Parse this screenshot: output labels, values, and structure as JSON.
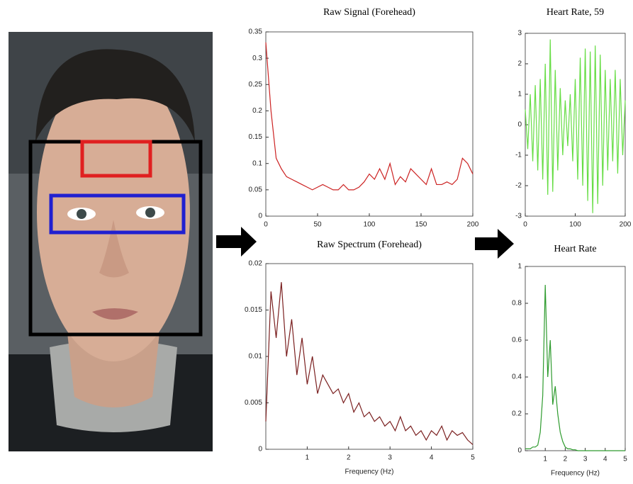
{
  "chart_data": [
    {
      "type": "line",
      "title": "Raw Signal (Forehead)",
      "x": [
        0,
        5,
        10,
        15,
        20,
        25,
        30,
        35,
        40,
        45,
        50,
        55,
        60,
        65,
        70,
        75,
        80,
        85,
        90,
        95,
        100,
        105,
        110,
        115,
        120,
        125,
        130,
        135,
        140,
        145,
        150,
        155,
        160,
        165,
        170,
        175,
        180,
        185,
        190,
        195,
        200
      ],
      "series": [
        {
          "color": "#cc2222",
          "values": [
            0.33,
            0.2,
            0.11,
            0.09,
            0.075,
            0.07,
            0.065,
            0.06,
            0.055,
            0.05,
            0.055,
            0.06,
            0.055,
            0.05,
            0.05,
            0.06,
            0.05,
            0.05,
            0.055,
            0.065,
            0.08,
            0.07,
            0.09,
            0.07,
            0.1,
            0.06,
            0.075,
            0.065,
            0.09,
            0.08,
            0.07,
            0.06,
            0.09,
            0.06,
            0.06,
            0.065,
            0.06,
            0.07,
            0.11,
            0.1,
            0.08
          ]
        }
      ],
      "xlim": [
        0,
        200
      ],
      "xticks": [
        0,
        50,
        100,
        150,
        200
      ],
      "ylim": [
        0,
        0.35
      ],
      "yticks": [
        0,
        0.05,
        0.1,
        0.15,
        0.2,
        0.25,
        0.3,
        0.35
      ]
    },
    {
      "type": "line",
      "title": "Raw Spectrum (Forehead)",
      "x_label": "Frequency (Hz)",
      "x": [
        0,
        0.125,
        0.25,
        0.375,
        0.5,
        0.625,
        0.75,
        0.875,
        1,
        1.125,
        1.25,
        1.375,
        1.5,
        1.625,
        1.75,
        1.875,
        2,
        2.125,
        2.25,
        2.375,
        2.5,
        2.625,
        2.75,
        2.875,
        3,
        3.125,
        3.25,
        3.375,
        3.5,
        3.625,
        3.75,
        3.875,
        4,
        4.125,
        4.25,
        4.375,
        4.5,
        4.625,
        4.75,
        4.875,
        5
      ],
      "series": [
        {
          "color": "#7a1f1f",
          "values": [
            0.003,
            0.017,
            0.012,
            0.018,
            0.01,
            0.014,
            0.008,
            0.012,
            0.007,
            0.01,
            0.006,
            0.008,
            0.007,
            0.006,
            0.0065,
            0.005,
            0.006,
            0.004,
            0.005,
            0.0035,
            0.004,
            0.003,
            0.0035,
            0.0025,
            0.003,
            0.002,
            0.0035,
            0.002,
            0.0025,
            0.0015,
            0.002,
            0.001,
            0.002,
            0.0015,
            0.0025,
            0.001,
            0.002,
            0.0015,
            0.0018,
            0.001,
            0.0005
          ]
        }
      ],
      "xlim": [
        0,
        5
      ],
      "xticks": [
        1,
        2,
        3,
        4,
        5
      ],
      "ylim": [
        0,
        0.02
      ],
      "yticks": [
        0,
        0.005,
        0.01,
        0.015,
        0.02
      ]
    },
    {
      "type": "line",
      "title": "Heart Rate, 59",
      "x": [
        0,
        5,
        10,
        15,
        20,
        25,
        30,
        35,
        40,
        45,
        50,
        55,
        60,
        65,
        70,
        75,
        80,
        85,
        90,
        95,
        100,
        105,
        110,
        115,
        120,
        125,
        130,
        135,
        140,
        145,
        150,
        155,
        160,
        165,
        170,
        175,
        180,
        185,
        190,
        195,
        200
      ],
      "series": [
        {
          "color": "#66dd44",
          "values": [
            0.5,
            -0.8,
            1,
            -1.2,
            1.3,
            -1.5,
            1.5,
            -1.8,
            2,
            -2.3,
            2.8,
            -2.2,
            1.8,
            -1.5,
            1.2,
            -1,
            0.8,
            -0.7,
            1,
            -1.2,
            1.5,
            -1.8,
            2.2,
            -2,
            2.5,
            -2.5,
            2.4,
            -2.9,
            2.6,
            -2.6,
            2.3,
            -2,
            1.8,
            -1.5,
            1.5,
            -1.2,
            1.8,
            -1.6,
            1.5,
            -1,
            0.8
          ]
        }
      ],
      "xlim": [
        0,
        200
      ],
      "xticks": [
        0,
        100,
        200
      ],
      "ylim": [
        -3,
        3
      ],
      "yticks": [
        -3,
        -2,
        -1,
        0,
        1,
        2,
        3
      ]
    },
    {
      "type": "line",
      "title": "Heart Rate",
      "x_label": "Frequency (Hz)",
      "x": [
        0,
        0.125,
        0.25,
        0.375,
        0.5,
        0.625,
        0.75,
        0.875,
        1,
        1.125,
        1.25,
        1.375,
        1.5,
        1.625,
        1.75,
        1.875,
        2,
        2.125,
        2.25,
        2.375,
        2.5,
        2.625,
        2.75,
        2.875,
        3,
        3.125,
        3.25,
        3.375,
        3.5,
        3.625,
        3.75,
        3.875,
        4,
        4.125,
        4.25,
        4.375,
        4.5,
        4.625,
        4.75,
        4.875,
        5
      ],
      "series": [
        {
          "color": "#2e9b2e",
          "values": [
            0.01,
            0.01,
            0.01,
            0.02,
            0.02,
            0.03,
            0.1,
            0.3,
            0.9,
            0.4,
            0.6,
            0.25,
            0.35,
            0.2,
            0.1,
            0.05,
            0.02,
            0.01,
            0.01,
            0.005,
            0.005,
            0,
            0,
            0,
            0,
            0,
            0,
            0,
            0,
            0,
            0,
            0,
            0,
            0,
            0,
            0,
            0,
            0,
            0,
            0,
            0
          ]
        }
      ],
      "xlim": [
        0,
        5
      ],
      "xticks": [
        1,
        2,
        3,
        4,
        5
      ],
      "ylim": [
        0,
        1
      ],
      "yticks": [
        0,
        0.2,
        0.4,
        0.6,
        0.8,
        1
      ]
    }
  ]
}
